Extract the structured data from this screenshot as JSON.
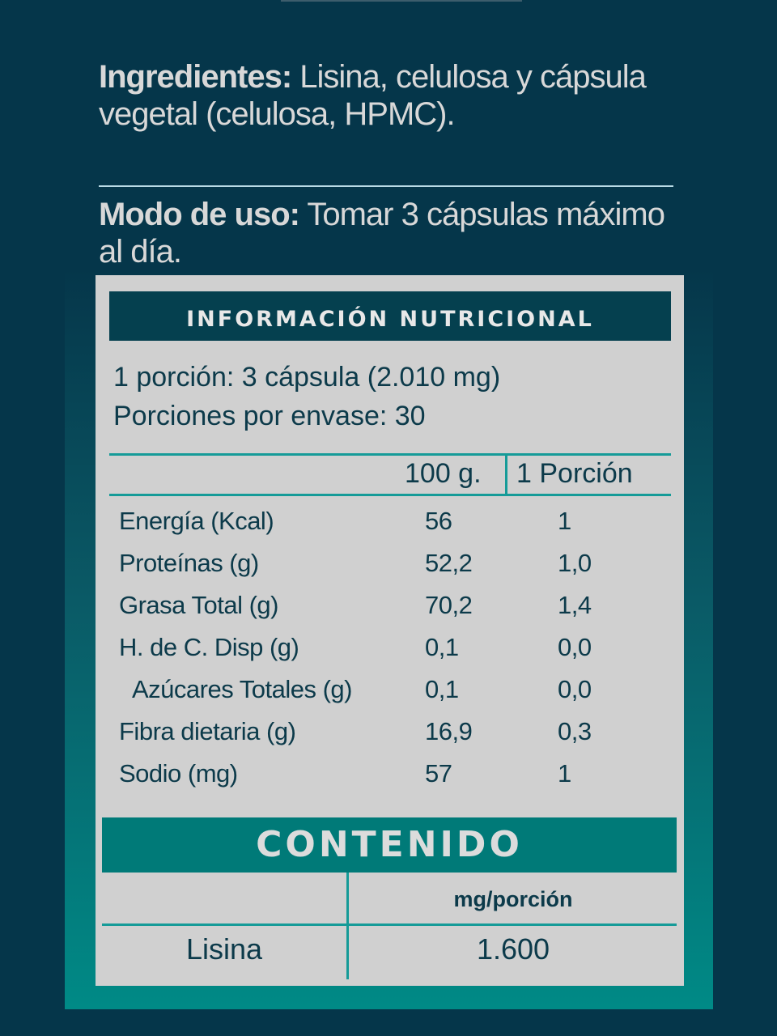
{
  "ingredients": {
    "label": "Ingredientes:",
    "text": " Lisina, celulosa y cápsula vegetal  (celulosa, HPMC)."
  },
  "usage": {
    "label": "Modo de uso:",
    "text": " Tomar 3 cápsulas máximo al día."
  },
  "nutrition": {
    "title": "INFORMACIÓN NUTRICIONAL",
    "serving": "1 porción: 3 cápsula (2.010 mg)",
    "servings_per_container": "Porciones por envase: 30",
    "columns": [
      "100 g.",
      "1 Porción"
    ],
    "rows": [
      {
        "name": "Energía (Kcal)",
        "per100": "56",
        "perServing": "1"
      },
      {
        "name": "Proteínas (g)",
        "per100": "52,2",
        "perServing": "1,0"
      },
      {
        "name": "Grasa Total (g)",
        "per100": "70,2",
        "perServing": "1,4"
      },
      {
        "name": "H. de C. Disp (g)",
        "per100": "0,1",
        "perServing": "0,0"
      },
      {
        "name": "Azúcares Totales (g)",
        "per100": "0,1",
        "perServing": "0,0"
      },
      {
        "name": "Fibra dietaria (g)",
        "per100": "16,9",
        "perServing": "0,3"
      },
      {
        "name": "Sodio (mg)",
        "per100": "57",
        "perServing": "1"
      }
    ]
  },
  "content": {
    "title": "CONTENIDO",
    "column": "mg/porción",
    "rows": [
      {
        "name": "Lisina",
        "value": "1.600"
      }
    ]
  },
  "colors": {
    "background": "#05364a",
    "teal": "#007a78",
    "panel": "#d0d0d0",
    "header": "#05404f"
  }
}
